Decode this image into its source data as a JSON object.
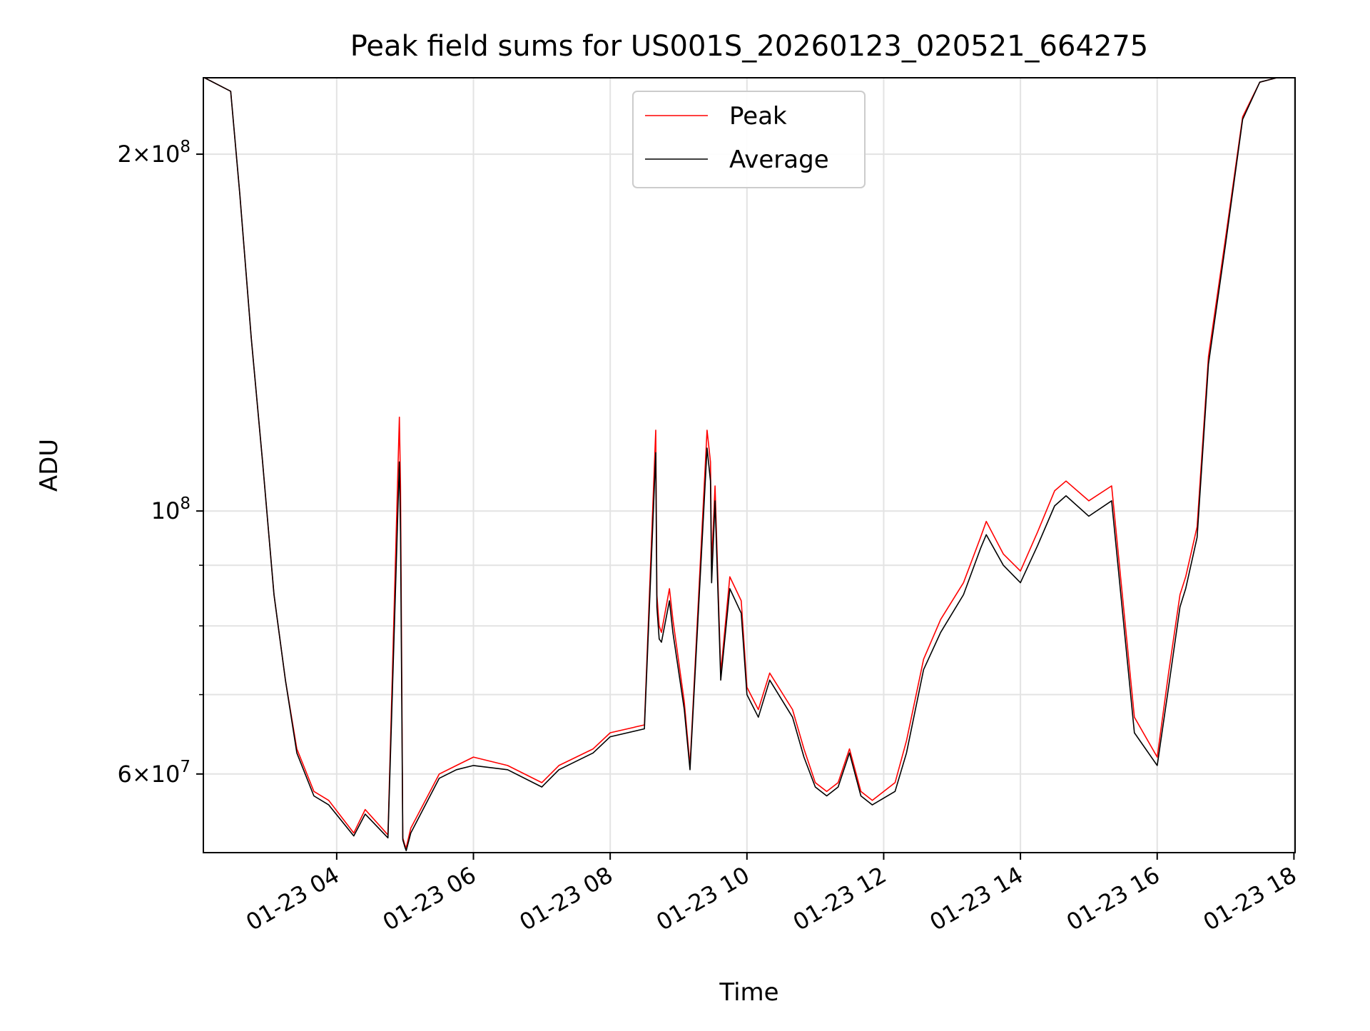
{
  "chart_data": {
    "type": "line",
    "title": "Peak field sums for US001S_20260123_020521_664275",
    "xlabel": "Time",
    "ylabel": "ADU",
    "y_scale": "log",
    "ylim": [
      51500000,
      232000000
    ],
    "xlim": [
      "2026-01-23 02:03",
      "2026-01-23 18:01"
    ],
    "x_ticks": [
      "01-23 04",
      "01-23 06",
      "01-23 08",
      "01-23 10",
      "01-23 12",
      "01-23 14",
      "01-23 16",
      "01-23 18"
    ],
    "y_ticks": [
      {
        "value": 200000000,
        "mant": "2",
        "base": "10",
        "exp": "8"
      },
      {
        "value": 100000000,
        "mant": "",
        "base": "10",
        "exp": "8"
      },
      {
        "value": 60000000,
        "mant": "6",
        "base": "10",
        "exp": "7"
      }
    ],
    "y_minor_ticks": [
      70000000,
      80000000,
      90000000
    ],
    "grid": true,
    "legend_position": "top-center",
    "series": [
      {
        "name": "Peak",
        "color": "#ff0000",
        "x": [
          "2026-01-23 02:04",
          "2026-01-23 02:27",
          "2026-01-23 02:35",
          "2026-01-23 02:45",
          "2026-01-23 02:55",
          "2026-01-23 03:05",
          "2026-01-23 03:15",
          "2026-01-23 03:25",
          "2026-01-23 03:40",
          "2026-01-23 03:53",
          "2026-01-23 04:15",
          "2026-01-23 04:25",
          "2026-01-23 04:45",
          "2026-01-23 04:55",
          "2026-01-23 04:56",
          "2026-01-23 04:58",
          "2026-01-23 05:00",
          "2026-01-23 05:01",
          "2026-01-23 05:05",
          "2026-01-23 05:30",
          "2026-01-23 05:45",
          "2026-01-23 06:00",
          "2026-01-23 06:30",
          "2026-01-23 07:00",
          "2026-01-23 07:15",
          "2026-01-23 07:45",
          "2026-01-23 08:00",
          "2026-01-23 08:30",
          "2026-01-23 08:40",
          "2026-01-23 08:41",
          "2026-01-23 08:43",
          "2026-01-23 08:45",
          "2026-01-23 08:52",
          "2026-01-23 08:55",
          "2026-01-23 09:05",
          "2026-01-23 09:10",
          "2026-01-23 09:25",
          "2026-01-23 09:28",
          "2026-01-23 09:29",
          "2026-01-23 09:32",
          "2026-01-23 09:37",
          "2026-01-23 09:45",
          "2026-01-23 09:55",
          "2026-01-23 10:00",
          "2026-01-23 10:10",
          "2026-01-23 10:20",
          "2026-01-23 10:40",
          "2026-01-23 10:50",
          "2026-01-23 11:00",
          "2026-01-23 11:10",
          "2026-01-23 11:20",
          "2026-01-23 11:30",
          "2026-01-23 11:40",
          "2026-01-23 11:50",
          "2026-01-23 12:10",
          "2026-01-23 12:20",
          "2026-01-23 12:35",
          "2026-01-23 12:50",
          "2026-01-23 13:10",
          "2026-01-23 13:25",
          "2026-01-23 13:30",
          "2026-01-23 13:45",
          "2026-01-23 14:00",
          "2026-01-23 14:15",
          "2026-01-23 14:30",
          "2026-01-23 14:40",
          "2026-01-23 15:00",
          "2026-01-23 15:20",
          "2026-01-23 15:40",
          "2026-01-23 16:00",
          "2026-01-23 16:10",
          "2026-01-23 16:20",
          "2026-01-23 16:25",
          "2026-01-23 16:35",
          "2026-01-23 16:45",
          "2026-01-23 17:00",
          "2026-01-23 17:15",
          "2026-01-23 17:30",
          "2026-01-23 17:45",
          "2026-01-23 18:00"
        ],
        "y": [
          232000000,
          226000000,
          185000000,
          140000000,
          110000000,
          85000000,
          72000000,
          63000000,
          58000000,
          57000000,
          53500000,
          56000000,
          53300000,
          120000000,
          105000000,
          53000000,
          52200000,
          52000000,
          54000000,
          60000000,
          61000000,
          62000000,
          61000000,
          59000000,
          61000000,
          63000000,
          65000000,
          66000000,
          117000000,
          85000000,
          80000000,
          79000000,
          86000000,
          81000000,
          69000000,
          61000000,
          117000000,
          110000000,
          90000000,
          105000000,
          73000000,
          88000000,
          84000000,
          71000000,
          68000000,
          73000000,
          68000000,
          63000000,
          59000000,
          58000000,
          59000000,
          63000000,
          58000000,
          57000000,
          59000000,
          64000000,
          75000000,
          81000000,
          87000000,
          95000000,
          98000000,
          92000000,
          89000000,
          96000000,
          104000000,
          106000000,
          102000000,
          105000000,
          67000000,
          62000000,
          73000000,
          85000000,
          88000000,
          97000000,
          135000000,
          170000000,
          215000000,
          230000000,
          232000000,
          232000000
        ]
      },
      {
        "name": "Average",
        "color": "#000000",
        "x": [
          "2026-01-23 02:04",
          "2026-01-23 02:27",
          "2026-01-23 02:35",
          "2026-01-23 02:45",
          "2026-01-23 02:55",
          "2026-01-23 03:05",
          "2026-01-23 03:15",
          "2026-01-23 03:25",
          "2026-01-23 03:40",
          "2026-01-23 03:53",
          "2026-01-23 04:15",
          "2026-01-23 04:25",
          "2026-01-23 04:45",
          "2026-01-23 04:55",
          "2026-01-23 04:56",
          "2026-01-23 04:58",
          "2026-01-23 05:00",
          "2026-01-23 05:01",
          "2026-01-23 05:05",
          "2026-01-23 05:30",
          "2026-01-23 05:45",
          "2026-01-23 06:00",
          "2026-01-23 06:30",
          "2026-01-23 07:00",
          "2026-01-23 07:15",
          "2026-01-23 07:45",
          "2026-01-23 08:00",
          "2026-01-23 08:30",
          "2026-01-23 08:40",
          "2026-01-23 08:41",
          "2026-01-23 08:43",
          "2026-01-23 08:45",
          "2026-01-23 08:52",
          "2026-01-23 08:55",
          "2026-01-23 09:05",
          "2026-01-23 09:10",
          "2026-01-23 09:25",
          "2026-01-23 09:28",
          "2026-01-23 09:29",
          "2026-01-23 09:32",
          "2026-01-23 09:37",
          "2026-01-23 09:45",
          "2026-01-23 09:55",
          "2026-01-23 10:00",
          "2026-01-23 10:10",
          "2026-01-23 10:20",
          "2026-01-23 10:40",
          "2026-01-23 10:50",
          "2026-01-23 11:00",
          "2026-01-23 11:10",
          "2026-01-23 11:20",
          "2026-01-23 11:30",
          "2026-01-23 11:40",
          "2026-01-23 11:50",
          "2026-01-23 12:10",
          "2026-01-23 12:20",
          "2026-01-23 12:35",
          "2026-01-23 12:50",
          "2026-01-23 13:10",
          "2026-01-23 13:25",
          "2026-01-23 13:30",
          "2026-01-23 13:45",
          "2026-01-23 14:00",
          "2026-01-23 14:15",
          "2026-01-23 14:30",
          "2026-01-23 14:40",
          "2026-01-23 15:00",
          "2026-01-23 15:20",
          "2026-01-23 15:40",
          "2026-01-23 16:00",
          "2026-01-23 16:10",
          "2026-01-23 16:20",
          "2026-01-23 16:25",
          "2026-01-23 16:35",
          "2026-01-23 16:45",
          "2026-01-23 17:00",
          "2026-01-23 17:15",
          "2026-01-23 17:30",
          "2026-01-23 17:45",
          "2026-01-23 18:00"
        ],
        "y": [
          232000000,
          226000000,
          185000000,
          140000000,
          110000000,
          85000000,
          72000000,
          62500000,
          57500000,
          56500000,
          53200000,
          55500000,
          53000000,
          110000000,
          96000000,
          52800000,
          52000000,
          51700000,
          53500000,
          59500000,
          60500000,
          61000000,
          60500000,
          58500000,
          60500000,
          62500000,
          64500000,
          65500000,
          112000000,
          83000000,
          78000000,
          77500000,
          84000000,
          79000000,
          68000000,
          60500000,
          113000000,
          106000000,
          87000000,
          102000000,
          72000000,
          86000000,
          82000000,
          70000000,
          67000000,
          72000000,
          67000000,
          62000000,
          58500000,
          57500000,
          58500000,
          62500000,
          57500000,
          56500000,
          58000000,
          62500000,
          73500000,
          79000000,
          85000000,
          93000000,
          95500000,
          90000000,
          87000000,
          93500000,
          101000000,
          103000000,
          99000000,
          102000000,
          65000000,
          61000000,
          71000000,
          83000000,
          86000000,
          95000000,
          133000000,
          168000000,
          214000000,
          230000000,
          232000000,
          232000000
        ]
      }
    ]
  }
}
